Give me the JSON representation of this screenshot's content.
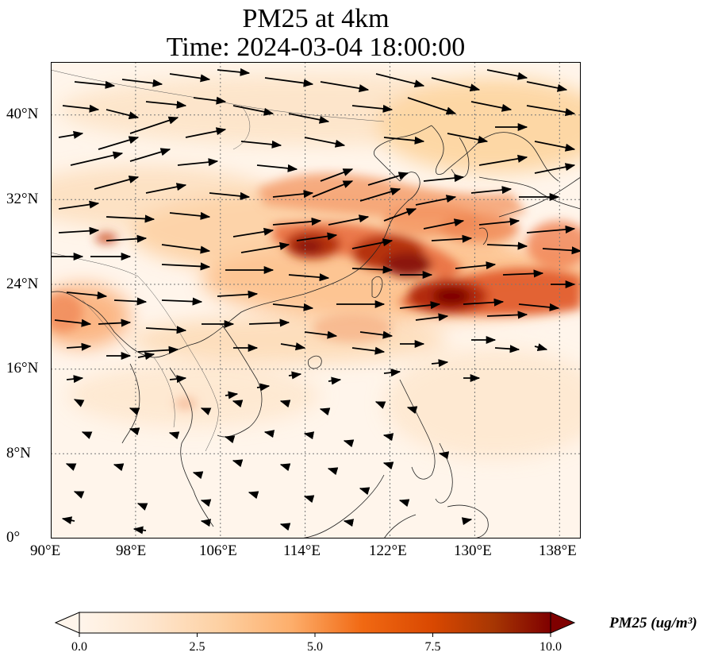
{
  "title_line1": "PM25 at 4km",
  "title_line2": "Time: 2024-03-04 18:00:00",
  "map": {
    "lon_range": [
      90,
      140
    ],
    "lat_range": [
      0,
      45
    ],
    "lon_ticks": [
      "90°E",
      "98°E",
      "106°E",
      "114°E",
      "122°E",
      "130°E",
      "138°E"
    ],
    "lat_ticks": [
      "0°",
      "8°N",
      "16°N",
      "24°N",
      "32°N",
      "40°N"
    ],
    "gridlines": true
  },
  "colorbar": {
    "label": "PM25 (ug/m³)",
    "ticks": [
      "0.0",
      "2.5",
      "5.0",
      "7.5",
      "10.0"
    ],
    "min": 0,
    "max": 10,
    "colormap": [
      "#fff5eb",
      "#fdd49e",
      "#fdae6b",
      "#f16913",
      "#d94801",
      "#a63603",
      "#7f0000"
    ],
    "extend": "both"
  },
  "colors": {
    "background": "#fff5eb",
    "coastline": "#222222",
    "arrows": "#000000"
  }
}
